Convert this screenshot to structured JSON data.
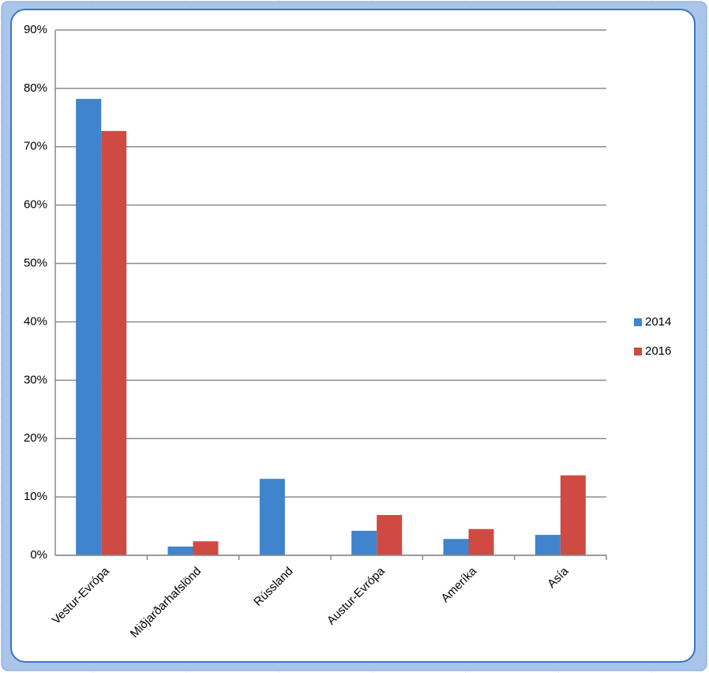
{
  "chart_data": {
    "type": "bar",
    "categories": [
      "Vestur-Evrópa",
      "Miðjarðarhafslönd",
      "Rússland",
      "Austur-Evrópa",
      "Ameríka",
      "Asía"
    ],
    "series": [
      {
        "name": "2014",
        "color": "#3f84cc",
        "values": [
          78.2,
          1.5,
          13.1,
          4.2,
          2.8,
          3.5
        ]
      },
      {
        "name": "2016",
        "color": "#cf4a42",
        "values": [
          72.7,
          2.4,
          null,
          6.9,
          4.5,
          13.7
        ]
      }
    ],
    "ylim": [
      0,
      90
    ],
    "yticks": [
      {
        "value": 0,
        "label": "0%"
      },
      {
        "value": 10,
        "label": "10%"
      },
      {
        "value": 20,
        "label": "20%"
      },
      {
        "value": 30,
        "label": "30%"
      },
      {
        "value": 40,
        "label": "40%"
      },
      {
        "value": 50,
        "label": "50%"
      },
      {
        "value": 60,
        "label": "60%"
      },
      {
        "value": 70,
        "label": "70%"
      },
      {
        "value": 80,
        "label": "80%"
      },
      {
        "value": 90,
        "label": "90%"
      }
    ],
    "grid": true,
    "legend": "right"
  }
}
